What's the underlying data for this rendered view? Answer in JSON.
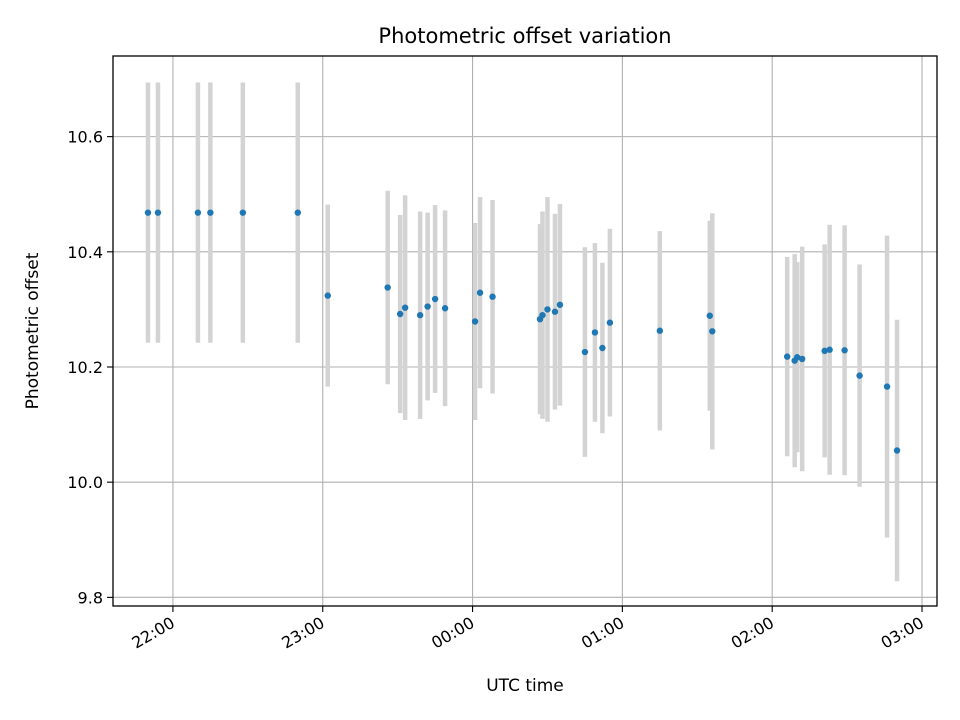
{
  "chart_data": {
    "type": "scatter",
    "title": "Photometric offset variation",
    "xlabel": "UTC time",
    "ylabel": "Photometric offset",
    "xlim": [
      "21:36",
      "27:06"
    ],
    "ylim": [
      9.785,
      10.74
    ],
    "x_ticks": [
      {
        "time": "22:00",
        "label": "22:00"
      },
      {
        "time": "23:00",
        "label": "23:00"
      },
      {
        "time": "24:00",
        "label": "00:00"
      },
      {
        "time": "25:00",
        "label": "01:00"
      },
      {
        "time": "26:00",
        "label": "02:00"
      },
      {
        "time": "27:00",
        "label": "03:00"
      }
    ],
    "y_ticks": [
      9.8,
      10.0,
      10.2,
      10.4,
      10.6
    ],
    "y_tick_labels": [
      "9.8",
      "10.0",
      "10.2",
      "10.4",
      "10.6"
    ],
    "grid": true,
    "point_color": "#1f77b4",
    "errorbar_color": "#d3d3d3",
    "points": [
      {
        "time": "21:50",
        "y": 10.468,
        "err": 0.226
      },
      {
        "time": "21:54",
        "y": 10.468,
        "err": 0.226
      },
      {
        "time": "22:10",
        "y": 10.468,
        "err": 0.226
      },
      {
        "time": "22:15",
        "y": 10.468,
        "err": 0.226
      },
      {
        "time": "22:28",
        "y": 10.468,
        "err": 0.226
      },
      {
        "time": "22:50",
        "y": 10.468,
        "err": 0.226
      },
      {
        "time": "23:02",
        "y": 10.324,
        "err": 0.158
      },
      {
        "time": "23:26",
        "y": 10.338,
        "err": 0.168
      },
      {
        "time": "23:31",
        "y": 10.292,
        "err": 0.172
      },
      {
        "time": "23:33",
        "y": 10.303,
        "err": 0.195
      },
      {
        "time": "23:39",
        "y": 10.29,
        "err": 0.18
      },
      {
        "time": "23:42",
        "y": 10.305,
        "err": 0.163
      },
      {
        "time": "23:45",
        "y": 10.318,
        "err": 0.163
      },
      {
        "time": "23:49",
        "y": 10.302,
        "err": 0.17
      },
      {
        "time": "24:01",
        "y": 10.279,
        "err": 0.171
      },
      {
        "time": "24:03",
        "y": 10.329,
        "err": 0.166
      },
      {
        "time": "24:08",
        "y": 10.322,
        "err": 0.168
      },
      {
        "time": "24:27",
        "y": 10.283,
        "err": 0.165
      },
      {
        "time": "24:28",
        "y": 10.29,
        "err": 0.18
      },
      {
        "time": "24:30",
        "y": 10.3,
        "err": 0.195
      },
      {
        "time": "24:33",
        "y": 10.296,
        "err": 0.17
      },
      {
        "time": "24:35",
        "y": 10.308,
        "err": 0.175
      },
      {
        "time": "24:45",
        "y": 10.226,
        "err": 0.182
      },
      {
        "time": "24:49",
        "y": 10.26,
        "err": 0.155
      },
      {
        "time": "24:52",
        "y": 10.233,
        "err": 0.148
      },
      {
        "time": "24:55",
        "y": 10.277,
        "err": 0.163
      },
      {
        "time": "25:15",
        "y": 10.263,
        "err": 0.173
      },
      {
        "time": "25:35",
        "y": 10.289,
        "err": 0.165
      },
      {
        "time": "25:36",
        "y": 10.262,
        "err": 0.205
      },
      {
        "time": "26:06",
        "y": 10.218,
        "err": 0.173
      },
      {
        "time": "26:09",
        "y": 10.211,
        "err": 0.185
      },
      {
        "time": "26:10",
        "y": 10.217,
        "err": 0.165
      },
      {
        "time": "26:12",
        "y": 10.214,
        "err": 0.195
      },
      {
        "time": "26:21",
        "y": 10.228,
        "err": 0.185
      },
      {
        "time": "26:23",
        "y": 10.23,
        "err": 0.217
      },
      {
        "time": "26:29",
        "y": 10.229,
        "err": 0.217
      },
      {
        "time": "26:35",
        "y": 10.185,
        "err": 0.193
      },
      {
        "time": "26:46",
        "y": 10.166,
        "err": 0.262
      },
      {
        "time": "26:50",
        "y": 10.055,
        "err": 0.227
      }
    ]
  }
}
